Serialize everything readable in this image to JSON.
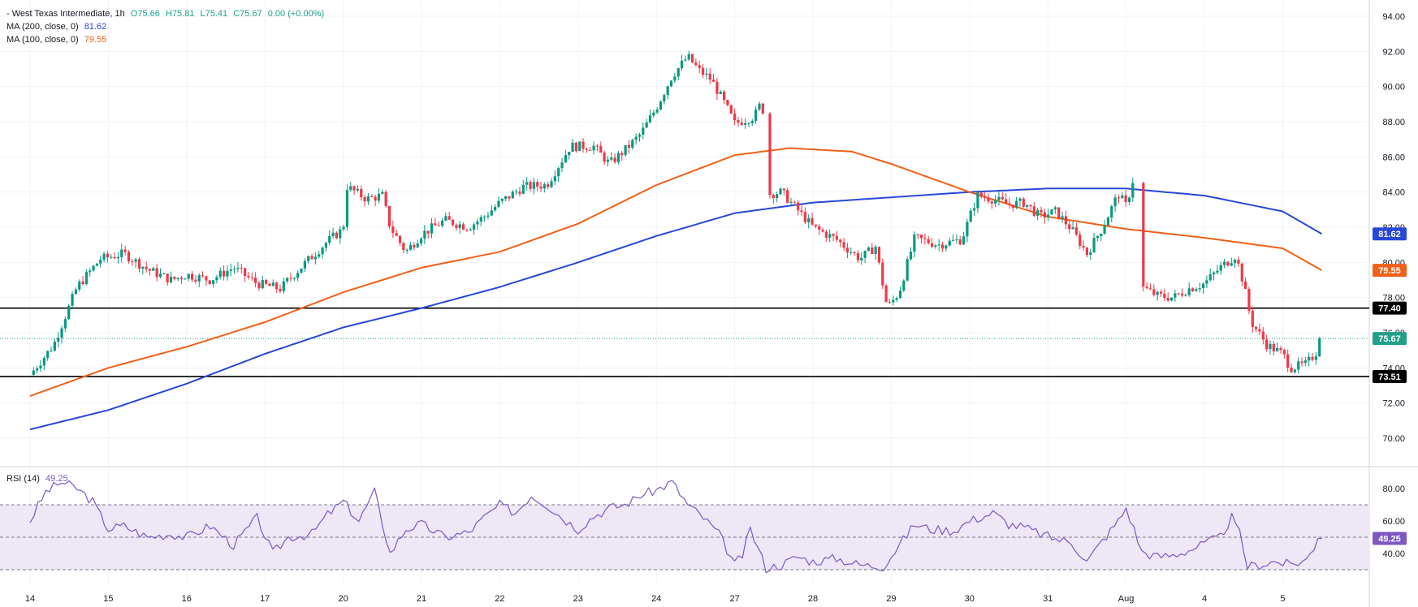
{
  "legend": {
    "title": "- West Texas Intermediate, 1h",
    "open": "O75.66",
    "high": "H75.81",
    "low": "L75.41",
    "close": "C75.67",
    "change": "0.00 (+0.00%)",
    "ma200_label": "MA (200, close, 0)",
    "ma200_value": "81.62",
    "ma100_label": "MA (100, close, 0)",
    "ma100_value": "79.55"
  },
  "rsi_legend": {
    "label": "RSI (14)",
    "value": "49.25"
  },
  "colors": {
    "up": "#089981",
    "down": "#f23645",
    "ma200": "#2848d8",
    "ma100": "#f06018",
    "rsi": "#7e57c2",
    "rsi_band": "#ede7f6",
    "level": "#000000",
    "last_price": "#22a08b"
  },
  "chart_data": [
    {
      "type": "line",
      "title": "",
      "x_ticks": [
        "14",
        "15",
        "16",
        "17",
        "20",
        "21",
        "22",
        "23",
        "24",
        "27",
        "28",
        "29",
        "30",
        "31",
        "Aug",
        "4",
        "5"
      ],
      "y_ticks": [
        "94.00",
        "92.00",
        "90.00",
        "88.00",
        "86.00",
        "84.00",
        "82.00",
        "80.00",
        "78.00",
        "76.00",
        "74.00",
        "72.00",
        "70.00"
      ],
      "ylim": [
        69.0,
        94.5
      ],
      "grid": true,
      "price_path": [
        [
          0,
          73.6
        ],
        [
          0.3,
          75.3
        ],
        [
          0.6,
          78.6
        ],
        [
          0.9,
          80.2
        ],
        [
          1.2,
          80.5
        ],
        [
          1.5,
          79.6
        ],
        [
          1.8,
          79.0
        ],
        [
          2.0,
          79.3
        ],
        [
          2.3,
          79.0
        ],
        [
          2.6,
          79.7
        ],
        [
          2.9,
          78.8
        ],
        [
          3.2,
          78.5
        ],
        [
          3.3,
          79.0
        ],
        [
          3.5,
          79.9
        ],
        [
          3.8,
          81.2
        ],
        [
          4.0,
          81.9
        ],
        [
          4.05,
          84.3
        ],
        [
          4.3,
          83.6
        ],
        [
          4.5,
          83.8
        ],
        [
          4.6,
          82.0
        ],
        [
          4.8,
          80.6
        ],
        [
          5.0,
          81.6
        ],
        [
          5.3,
          82.4
        ],
        [
          5.6,
          82.0
        ],
        [
          5.8,
          82.6
        ],
        [
          6.0,
          83.4
        ],
        [
          6.3,
          84.3
        ],
        [
          6.6,
          84.4
        ],
        [
          6.9,
          86.6
        ],
        [
          7.2,
          86.6
        ],
        [
          7.4,
          85.6
        ],
        [
          7.6,
          86.4
        ],
        [
          7.8,
          87.3
        ],
        [
          8.0,
          88.8
        ],
        [
          8.2,
          90.6
        ],
        [
          8.4,
          91.7
        ],
        [
          8.55,
          90.9
        ],
        [
          8.7,
          90.4
        ],
        [
          8.9,
          88.8
        ],
        [
          9.0,
          87.9
        ],
        [
          9.25,
          88.3
        ],
        [
          9.35,
          89.2
        ],
        [
          9.45,
          83.9
        ],
        [
          9.6,
          84.0
        ],
        [
          9.8,
          83.0
        ],
        [
          10.0,
          82.0
        ],
        [
          10.3,
          81.3
        ],
        [
          10.6,
          80.2
        ],
        [
          10.8,
          80.9
        ],
        [
          10.95,
          77.4
        ],
        [
          11.1,
          78.3
        ],
        [
          11.3,
          81.4
        ],
        [
          11.6,
          81.0
        ],
        [
          11.9,
          81.3
        ],
        [
          12.1,
          83.8
        ],
        [
          12.3,
          83.6
        ],
        [
          12.5,
          83.3
        ],
        [
          12.7,
          83.4
        ],
        [
          12.9,
          82.6
        ],
        [
          13.1,
          82.9
        ],
        [
          13.3,
          81.9
        ],
        [
          13.5,
          80.5
        ],
        [
          13.7,
          82.0
        ],
        [
          13.9,
          83.9
        ],
        [
          14.0,
          83.2
        ],
        [
          14.1,
          84.9
        ],
        [
          14.2,
          78.6
        ],
        [
          14.4,
          78.1
        ],
        [
          14.6,
          78.0
        ],
        [
          14.8,
          78.5
        ],
        [
          15.0,
          78.8
        ],
        [
          15.2,
          79.7
        ],
        [
          15.4,
          80.4
        ],
        [
          15.5,
          78.8
        ],
        [
          15.6,
          76.6
        ],
        [
          15.8,
          75.3
        ],
        [
          16.0,
          74.8
        ],
        [
          16.1,
          74.0
        ],
        [
          16.3,
          74.2
        ],
        [
          16.45,
          75.0
        ],
        [
          16.5,
          75.67
        ]
      ],
      "series": [
        {
          "name": "MA (200, close, 0)",
          "points": [
            [
              0,
              70.5
            ],
            [
              1,
              71.6
            ],
            [
              2,
              73.1
            ],
            [
              3,
              74.8
            ],
            [
              4,
              76.3
            ],
            [
              5,
              77.4
            ],
            [
              6,
              78.6
            ],
            [
              7,
              80.0
            ],
            [
              8,
              81.5
            ],
            [
              9,
              82.8
            ],
            [
              10,
              83.4
            ],
            [
              11,
              83.7
            ],
            [
              12,
              84.0
            ],
            [
              13,
              84.2
            ],
            [
              14,
              84.2
            ],
            [
              15,
              83.8
            ],
            [
              16,
              82.9
            ],
            [
              16.5,
              81.62
            ]
          ]
        },
        {
          "name": "MA (100, close, 0)",
          "points": [
            [
              0,
              72.4
            ],
            [
              1,
              74.0
            ],
            [
              2,
              75.2
            ],
            [
              3,
              76.6
            ],
            [
              4,
              78.3
            ],
            [
              5,
              79.7
            ],
            [
              6,
              80.6
            ],
            [
              7,
              82.2
            ],
            [
              8,
              84.4
            ],
            [
              9,
              86.1
            ],
            [
              9.7,
              86.5
            ],
            [
              10.5,
              86.3
            ],
            [
              11,
              85.6
            ],
            [
              12,
              84.0
            ],
            [
              13,
              82.6
            ],
            [
              14,
              81.9
            ],
            [
              15,
              81.4
            ],
            [
              16,
              80.8
            ],
            [
              16.5,
              79.55
            ]
          ]
        }
      ],
      "horizontal_levels": [
        "77.40",
        "73.51"
      ],
      "price_labels": [
        {
          "text": "81.62",
          "value": 81.62,
          "color": "#2848d8"
        },
        {
          "text": "79.55",
          "value": 79.55,
          "color": "#f06018"
        },
        {
          "text": "77.40",
          "value": 77.4,
          "color": "#000000"
        },
        {
          "text": "75.67",
          "value": 75.67,
          "color": "#22a08b"
        },
        {
          "text": "73.51",
          "value": 73.51,
          "color": "#000000"
        }
      ],
      "last_price": 75.67
    },
    {
      "type": "line",
      "title": "",
      "series_label": "RSI (14)",
      "y_ticks": [
        "80.00",
        "60.00",
        "40.00"
      ],
      "ylim": [
        23,
        88
      ],
      "band": [
        30,
        70
      ],
      "reference_lines": [
        30,
        50,
        70
      ],
      "points": [
        [
          0,
          60
        ],
        [
          0.2,
          78
        ],
        [
          0.4,
          84
        ],
        [
          0.6,
          80
        ],
        [
          0.8,
          72
        ],
        [
          1.0,
          55
        ],
        [
          1.2,
          57
        ],
        [
          1.5,
          50
        ],
        [
          1.8,
          52
        ],
        [
          2.0,
          50
        ],
        [
          2.3,
          57
        ],
        [
          2.6,
          45
        ],
        [
          2.9,
          62
        ],
        [
          3.1,
          40
        ],
        [
          3.3,
          50
        ],
        [
          3.6,
          52
        ],
        [
          3.8,
          64
        ],
        [
          4.0,
          72
        ],
        [
          4.2,
          60
        ],
        [
          4.4,
          78
        ],
        [
          4.6,
          40
        ],
        [
          4.8,
          55
        ],
        [
          5.0,
          58
        ],
        [
          5.3,
          50
        ],
        [
          5.6,
          53
        ],
        [
          5.8,
          62
        ],
        [
          6.0,
          70
        ],
        [
          6.2,
          65
        ],
        [
          6.4,
          76
        ],
        [
          6.6,
          70
        ],
        [
          6.8,
          62
        ],
        [
          7.0,
          55
        ],
        [
          7.2,
          63
        ],
        [
          7.4,
          68
        ],
        [
          7.6,
          70
        ],
        [
          7.8,
          76
        ],
        [
          8.0,
          79
        ],
        [
          8.2,
          84
        ],
        [
          8.4,
          70
        ],
        [
          8.6,
          62
        ],
        [
          8.8,
          52
        ],
        [
          9.0,
          33
        ],
        [
          9.1,
          39
        ],
        [
          9.2,
          55
        ],
        [
          9.4,
          31
        ],
        [
          9.6,
          33
        ],
        [
          9.8,
          38
        ],
        [
          10.0,
          35
        ],
        [
          10.3,
          37
        ],
        [
          10.6,
          33
        ],
        [
          10.9,
          32
        ],
        [
          11.1,
          45
        ],
        [
          11.3,
          58
        ],
        [
          11.5,
          55
        ],
        [
          11.8,
          54
        ],
        [
          12.0,
          60
        ],
        [
          12.3,
          65
        ],
        [
          12.5,
          58
        ],
        [
          12.7,
          56
        ],
        [
          12.9,
          52
        ],
        [
          13.1,
          49
        ],
        [
          13.3,
          47
        ],
        [
          13.5,
          35
        ],
        [
          13.7,
          48
        ],
        [
          13.9,
          60
        ],
        [
          14.0,
          68
        ],
        [
          14.1,
          55
        ],
        [
          14.2,
          41
        ],
        [
          14.4,
          38
        ],
        [
          14.6,
          39
        ],
        [
          14.8,
          42
        ],
        [
          15.0,
          46
        ],
        [
          15.2,
          50
        ],
        [
          15.35,
          62
        ],
        [
          15.45,
          52
        ],
        [
          15.55,
          32
        ],
        [
          15.7,
          33
        ],
        [
          15.9,
          35
        ],
        [
          16.1,
          33
        ],
        [
          16.3,
          36
        ],
        [
          16.4,
          44
        ],
        [
          16.5,
          49.25
        ]
      ],
      "last_value_label": "49.25",
      "last_value": 49.25
    }
  ]
}
